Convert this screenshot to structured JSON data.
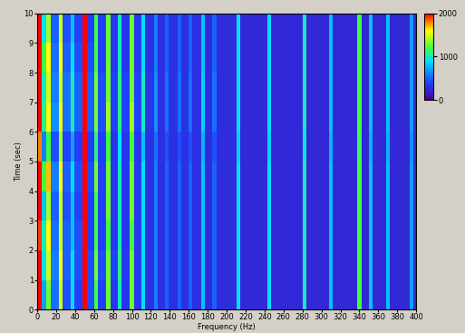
{
  "chart_data": {
    "type": "heatmap",
    "x_label": "Frequency (Hz)",
    "y_label": "Time (sec)",
    "xlim": [
      0,
      400
    ],
    "ylim": [
      0,
      10
    ],
    "xticks": [
      0,
      20,
      40,
      60,
      80,
      100,
      120,
      140,
      160,
      180,
      200,
      220,
      240,
      260,
      280,
      300,
      320,
      340,
      360,
      380,
      400
    ],
    "yticks": [
      0,
      1,
      2,
      3,
      4,
      5,
      6,
      7,
      8,
      9,
      10
    ],
    "x_bins": [
      0,
      5,
      10,
      14,
      23,
      27,
      35,
      39,
      48,
      53,
      60,
      64,
      73,
      77,
      85,
      89,
      98,
      102,
      110,
      114,
      123,
      127,
      135,
      139,
      148,
      152,
      160,
      164,
      173,
      177,
      185,
      189,
      210,
      214,
      243,
      247,
      280,
      284,
      308,
      312,
      338,
      342,
      350,
      354,
      368,
      372,
      393,
      397,
      400
    ],
    "y_bins": [
      0,
      1,
      2,
      3,
      4,
      5,
      6,
      7,
      8,
      9,
      10
    ],
    "cells": [
      [
        2000,
        700,
        1300,
        550,
        1500,
        450,
        900,
        400,
        2000,
        450,
        1200,
        400,
        1300,
        350,
        1000,
        350,
        1300,
        350,
        900,
        300,
        600,
        300,
        500,
        300,
        500,
        300,
        500,
        300,
        800,
        280,
        500,
        280,
        900,
        260,
        900,
        260,
        1000,
        250,
        800,
        250,
        1200,
        250,
        800,
        250,
        800,
        250,
        700,
        250
      ],
      [
        2000,
        900,
        1500,
        600,
        1600,
        500,
        900,
        450,
        2000,
        450,
        1300,
        450,
        1300,
        400,
        1100,
        350,
        1300,
        350,
        900,
        300,
        600,
        300,
        500,
        300,
        500,
        300,
        500,
        300,
        800,
        280,
        500,
        280,
        900,
        260,
        900,
        260,
        1000,
        250,
        800,
        250,
        1200,
        250,
        800,
        250,
        800,
        250,
        700,
        250
      ],
      [
        1900,
        1000,
        1600,
        550,
        1500,
        500,
        800,
        450,
        2000,
        400,
        1200,
        400,
        1200,
        350,
        1000,
        350,
        1200,
        350,
        900,
        300,
        600,
        300,
        500,
        300,
        500,
        300,
        500,
        300,
        800,
        280,
        500,
        280,
        900,
        260,
        900,
        260,
        1000,
        250,
        800,
        250,
        1200,
        250,
        800,
        250,
        800,
        250,
        700,
        250
      ],
      [
        2000,
        800,
        1400,
        500,
        1500,
        450,
        800,
        400,
        2000,
        400,
        1200,
        400,
        1300,
        350,
        1000,
        350,
        1300,
        350,
        900,
        300,
        600,
        300,
        500,
        300,
        500,
        300,
        500,
        300,
        800,
        280,
        500,
        280,
        900,
        260,
        900,
        260,
        1000,
        250,
        800,
        250,
        1200,
        250,
        800,
        250,
        800,
        250,
        700,
        250
      ],
      [
        2000,
        1200,
        1700,
        600,
        1600,
        500,
        900,
        450,
        2000,
        450,
        1300,
        400,
        1300,
        350,
        1000,
        350,
        1300,
        350,
        900,
        300,
        600,
        300,
        500,
        300,
        500,
        300,
        500,
        300,
        800,
        280,
        500,
        280,
        900,
        260,
        900,
        260,
        1000,
        250,
        800,
        250,
        1200,
        250,
        800,
        250,
        800,
        250,
        700,
        250
      ],
      [
        1800,
        600,
        1200,
        450,
        1400,
        400,
        700,
        380,
        2000,
        380,
        1100,
        380,
        1200,
        330,
        900,
        330,
        1200,
        330,
        800,
        300,
        550,
        300,
        450,
        300,
        450,
        300,
        450,
        300,
        750,
        280,
        450,
        280,
        850,
        260,
        850,
        260,
        950,
        250,
        750,
        250,
        1150,
        250,
        750,
        250,
        750,
        250,
        650,
        250
      ],
      [
        2000,
        1100,
        1600,
        650,
        1600,
        550,
        1000,
        500,
        2000,
        500,
        1300,
        450,
        1400,
        400,
        1100,
        400,
        1400,
        400,
        1000,
        330,
        650,
        300,
        550,
        300,
        550,
        300,
        550,
        300,
        850,
        280,
        550,
        280,
        900,
        260,
        900,
        260,
        1000,
        250,
        800,
        250,
        1200,
        250,
        800,
        250,
        800,
        250,
        700,
        250
      ],
      [
        2000,
        1000,
        1500,
        600,
        1500,
        550,
        1000,
        500,
        2000,
        500,
        1300,
        450,
        1300,
        400,
        1100,
        400,
        1300,
        400,
        1000,
        330,
        650,
        300,
        550,
        300,
        550,
        300,
        550,
        300,
        850,
        280,
        550,
        280,
        900,
        260,
        900,
        260,
        1000,
        250,
        800,
        250,
        1200,
        250,
        800,
        250,
        800,
        250,
        700,
        250
      ],
      [
        2000,
        1200,
        1600,
        550,
        1600,
        500,
        900,
        450,
        2000,
        450,
        1200,
        400,
        1300,
        350,
        1000,
        350,
        1300,
        350,
        900,
        300,
        600,
        300,
        500,
        300,
        500,
        300,
        500,
        300,
        800,
        280,
        500,
        280,
        900,
        260,
        900,
        260,
        1000,
        250,
        800,
        250,
        1200,
        250,
        800,
        250,
        800,
        250,
        700,
        250
      ],
      [
        2000,
        900,
        1400,
        500,
        1500,
        450,
        800,
        400,
        2000,
        400,
        1200,
        400,
        1300,
        350,
        1000,
        350,
        1300,
        350,
        900,
        300,
        600,
        300,
        500,
        300,
        500,
        300,
        500,
        300,
        800,
        280,
        500,
        280,
        900,
        260,
        900,
        260,
        1000,
        250,
        800,
        250,
        1200,
        250,
        800,
        250,
        800,
        250,
        700,
        250
      ]
    ],
    "colorbar": {
      "range": [
        0,
        2000
      ],
      "ticks": [
        0,
        1000,
        2000
      ]
    }
  }
}
